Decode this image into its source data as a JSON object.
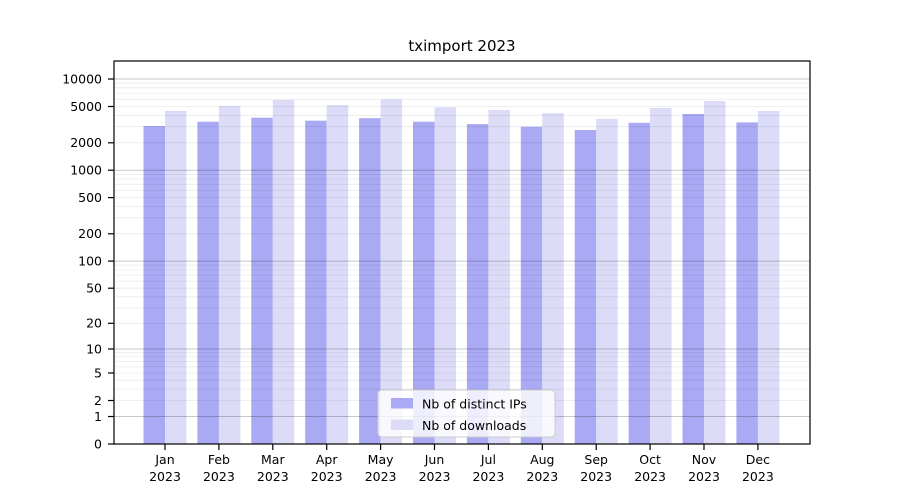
{
  "chart_data": {
    "type": "bar",
    "title": "tximport 2023",
    "year_label": "2023",
    "categories": [
      "Jan",
      "Feb",
      "Mar",
      "Apr",
      "May",
      "Jun",
      "Jul",
      "Aug",
      "Sep",
      "Oct",
      "Nov",
      "Dec"
    ],
    "series": [
      {
        "name": "Nb of distinct IPs",
        "color": "#a9a9f4",
        "values": [
          3050,
          3400,
          3770,
          3490,
          3720,
          3400,
          3200,
          3000,
          2760,
          3310,
          4130,
          3340
        ]
      },
      {
        "name": "Nb of downloads",
        "color": "#dcdcf8",
        "values": [
          4480,
          5090,
          5880,
          5180,
          5980,
          4900,
          4570,
          4230,
          3650,
          4820,
          5740,
          4460
        ]
      }
    ],
    "y_ticks": [
      0,
      1,
      2,
      5,
      10,
      20,
      50,
      100,
      200,
      500,
      1000,
      2000,
      5000,
      10000
    ],
    "y_scale": "log10(value+1)",
    "ylim": [
      0,
      10000
    ],
    "grid": true,
    "legend_position": "lower center",
    "colors": {
      "axis": "#000000",
      "grid_major": "rgba(0,0,0,0.22)",
      "grid_minor": "rgba(0,0,0,0.08)",
      "legend_bg": "#ffffff",
      "legend_border": "#cccccc",
      "background": "#ffffff"
    }
  }
}
